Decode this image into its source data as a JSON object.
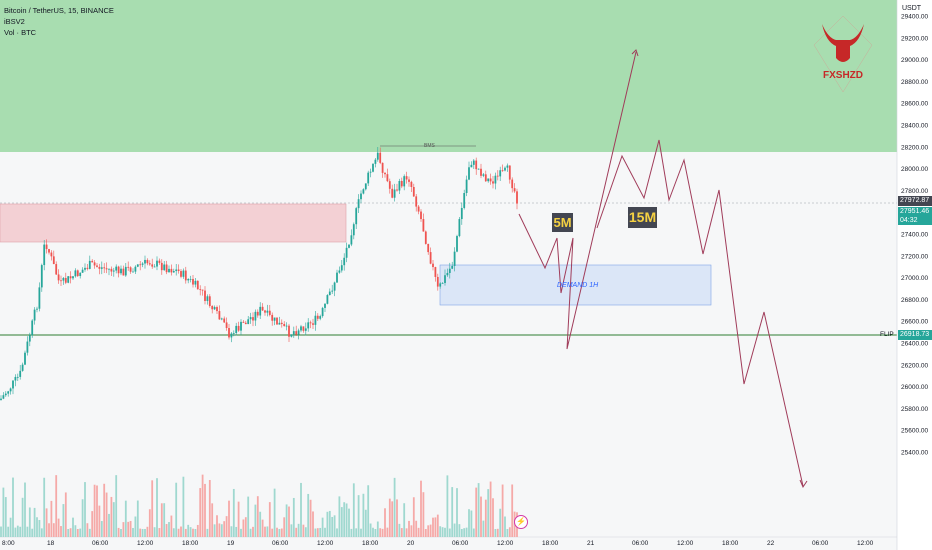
{
  "legend": {
    "symbol": "Bitcoin / TetherUS, 15, BINANCE",
    "indicator": "iBSV2",
    "volume": "Vol · BTC"
  },
  "price_axis": {
    "currency": "USDT",
    "ticks": [
      "29400.00",
      "29200.00",
      "29000.00",
      "28800.00",
      "28600.00",
      "28400.00",
      "28200.00",
      "28000.00",
      "27800.00",
      "27600.00",
      "27400.00",
      "27200.00",
      "27000.00",
      "26800.00",
      "26600.00",
      "26400.00",
      "26200.00",
      "26000.00",
      "25800.00",
      "25600.00",
      "25400.00"
    ]
  },
  "time_axis": {
    "ticks": [
      "8:00",
      "18",
      "06:00",
      "12:00",
      "18:00",
      "19",
      "06:00",
      "12:00",
      "18:00",
      "20",
      "06:00",
      "12:00",
      "18:00",
      "21",
      "06:00",
      "12:00",
      "18:00",
      "22",
      "06:00",
      "12:00"
    ]
  },
  "price_tags": {
    "upper": "27972.87",
    "current": "27951.46",
    "countdown": "04:32",
    "flip": "26918.73"
  },
  "labels": {
    "flip": "FLIP",
    "bms": "BMS",
    "demand": "DEMAND 1H",
    "tf_5m": "5M",
    "tf_15m": "15M",
    "logo_text": "FXSHZD"
  },
  "colors": {
    "resistance_zone": "#a8ddb0",
    "supply_zone": "#f3d0d4",
    "demand_zone": "#dbe6f7",
    "flip_line": "#2e7d32",
    "projection": "#a03c5a",
    "tag_current": "#26a69a",
    "tag_flip": "#26a69a",
    "tag_upper": "#434651"
  }
}
